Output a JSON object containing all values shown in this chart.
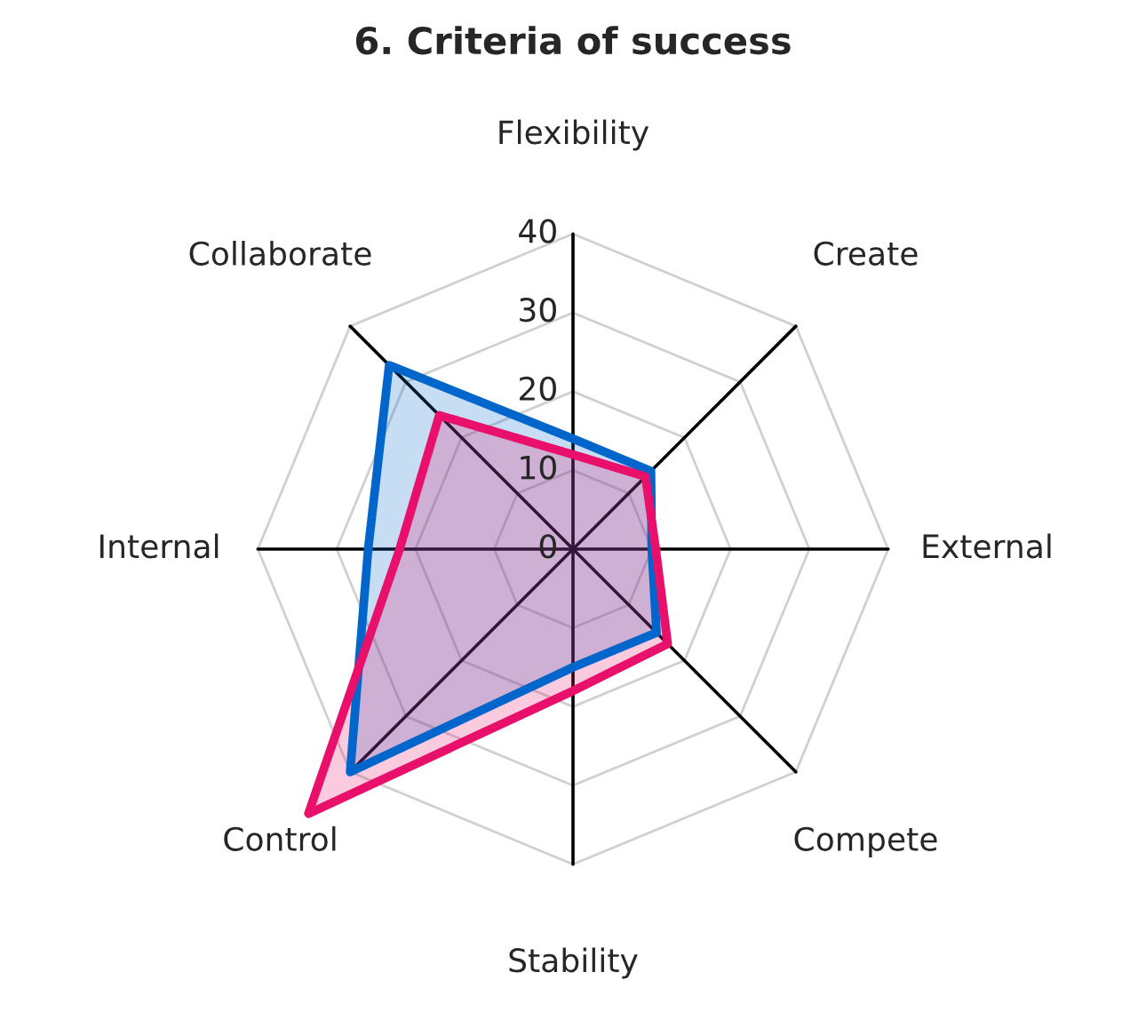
{
  "chart_data": {
    "type": "radar",
    "title": "6. Criteria of success",
    "categories": [
      "Flexibility",
      "Create",
      "External",
      "Compete",
      "Stability",
      "Control",
      "Internal",
      "Collaborate"
    ],
    "series": [
      {
        "color": "#0066cc",
        "values": [
          14,
          14,
          10,
          15,
          15,
          40,
          26,
          33
        ]
      },
      {
        "color": "#e8106a",
        "values": [
          12,
          13,
          10.5,
          17,
          18,
          47.5,
          22,
          24
        ]
      }
    ],
    "ylim": [
      0,
      48
    ],
    "yticks": [
      0,
      10,
      20,
      30,
      40
    ],
    "grid": true
  }
}
